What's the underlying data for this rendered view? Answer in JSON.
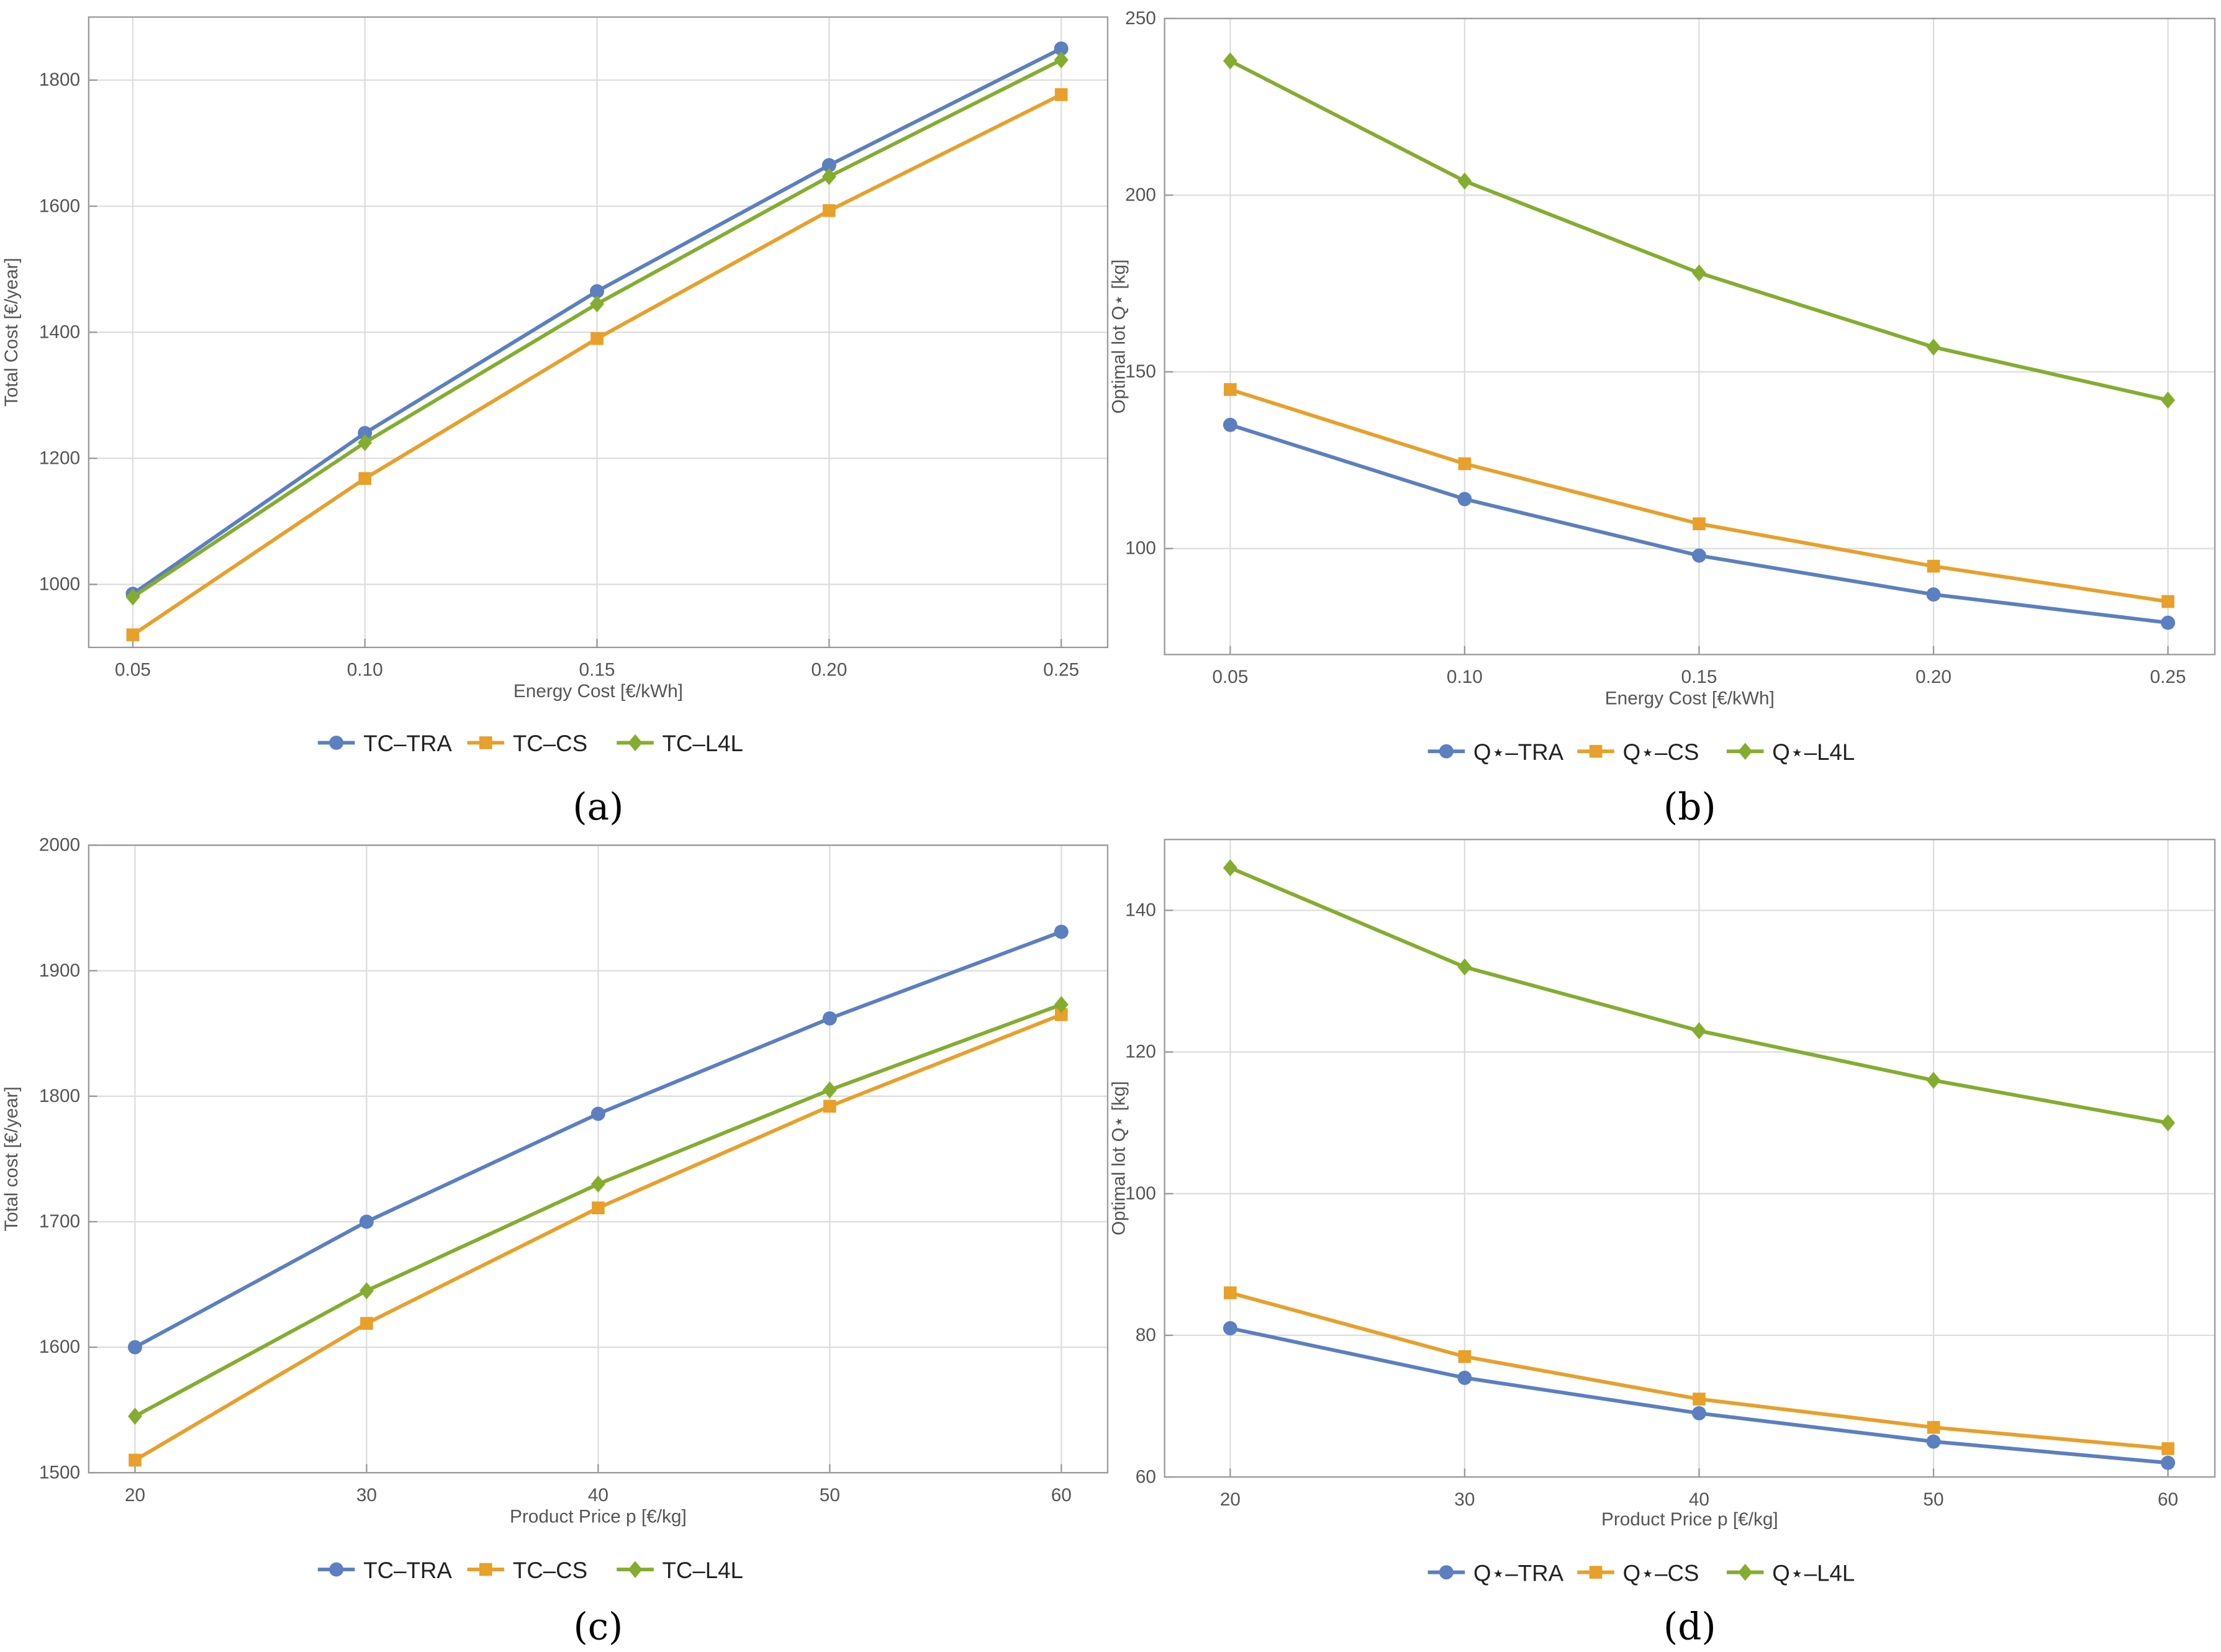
{
  "colors": {
    "TRA": "#5b7fc0",
    "CS": "#e8a02a",
    "L4L": "#84ad2f",
    "grid": "#dddddd",
    "frame": "#999999"
  },
  "chart_data": [
    {
      "type": "line",
      "caption": "(a)",
      "xlabel": "Energy Cost [€/kWh]",
      "ylabel": "Total Cost [€/year]",
      "x": [
        0.05,
        0.1,
        0.15,
        0.2,
        0.25
      ],
      "xticks": [
        "0.05",
        "0.10",
        "0.15",
        "0.20",
        "0.25"
      ],
      "yticks": [
        1000,
        1200,
        1400,
        1600,
        1800
      ],
      "xlim": [
        0.0405,
        0.26
      ],
      "ylim": [
        900,
        1900
      ],
      "legend_position": "bottom",
      "series": [
        {
          "name": "TC–TRA",
          "key": "TRA",
          "marker": "circle",
          "values": [
            985,
            1240,
            1465,
            1665,
            1850
          ]
        },
        {
          "name": "TC–CS",
          "key": "CS",
          "marker": "square",
          "values": [
            920,
            1168,
            1390,
            1593,
            1777
          ]
        },
        {
          "name": "TC–L4L",
          "key": "L4L",
          "marker": "diamond",
          "values": [
            980,
            1225,
            1445,
            1647,
            1832
          ]
        }
      ]
    },
    {
      "type": "line",
      "caption": "(b)",
      "xlabel": "Energy Cost [€/kWh]",
      "ylabel": "Optimal lot Q⋆ [kg]",
      "x": [
        0.05,
        0.1,
        0.15,
        0.2,
        0.25
      ],
      "xticks": [
        "0.05",
        "0.10",
        "0.15",
        "0.20",
        "0.25"
      ],
      "yticks": [
        100,
        150,
        200,
        250
      ],
      "xlim": [
        0.036,
        0.26
      ],
      "ylim": [
        70,
        250
      ],
      "legend_position": "bottom",
      "series": [
        {
          "name": "Q⋆–TRA",
          "key": "TRA",
          "marker": "circle",
          "values": [
            135,
            114,
            98,
            87,
            79
          ]
        },
        {
          "name": "Q⋆–CS",
          "key": "CS",
          "marker": "square",
          "values": [
            145,
            124,
            107,
            95,
            85
          ]
        },
        {
          "name": "Q⋆–L4L",
          "key": "L4L",
          "marker": "diamond",
          "values": [
            238,
            204,
            178,
            157,
            142
          ]
        }
      ]
    },
    {
      "type": "line",
      "caption": "(c)",
      "xlabel": "Product Price p [€/kg]",
      "ylabel": "Total cost [€/year]",
      "x": [
        20,
        30,
        40,
        50,
        60
      ],
      "xticks": [
        "20",
        "30",
        "40",
        "50",
        "60"
      ],
      "yticks": [
        1500,
        1600,
        1700,
        1800,
        1900,
        2000
      ],
      "xlim": [
        18,
        62
      ],
      "ylim": [
        1500,
        2000
      ],
      "legend_position": "bottom",
      "series": [
        {
          "name": "TC–TRA",
          "key": "TRA",
          "marker": "circle",
          "values": [
            1600,
            1700,
            1786,
            1862,
            1931
          ]
        },
        {
          "name": "TC–CS",
          "key": "CS",
          "marker": "square",
          "values": [
            1510,
            1619,
            1711,
            1792,
            1865
          ]
        },
        {
          "name": "TC–L4L",
          "key": "L4L",
          "marker": "diamond",
          "values": [
            1545,
            1645,
            1730,
            1805,
            1873
          ]
        }
      ]
    },
    {
      "type": "line",
      "caption": "(d)",
      "xlabel": "Product Price p [€/kg]",
      "ylabel": "Optimal lot Q⋆ [kg]",
      "x": [
        20,
        30,
        40,
        50,
        60
      ],
      "xticks": [
        "20",
        "30",
        "40",
        "50",
        "60"
      ],
      "yticks": [
        60,
        80,
        100,
        120,
        140
      ],
      "xlim": [
        17.2,
        62
      ],
      "ylim": [
        60,
        150
      ],
      "legend_position": "bottom",
      "series": [
        {
          "name": "Q⋆–TRA",
          "key": "TRA",
          "marker": "circle",
          "values": [
            81,
            74,
            69,
            65,
            62
          ]
        },
        {
          "name": "Q⋆–CS",
          "key": "CS",
          "marker": "square",
          "values": [
            86,
            77,
            71,
            67,
            64
          ]
        },
        {
          "name": "Q⋆–L4L",
          "key": "L4L",
          "marker": "diamond",
          "values": [
            146,
            132,
            123,
            116,
            110
          ]
        }
      ]
    }
  ]
}
